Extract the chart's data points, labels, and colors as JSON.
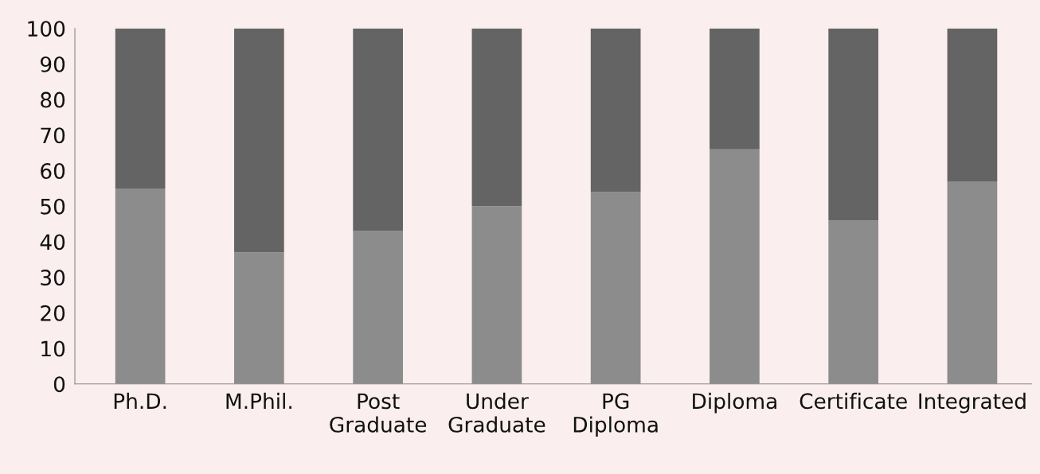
{
  "chart_data": {
    "type": "bar",
    "stacked": true,
    "categories": [
      "Ph.D.",
      "M.Phil.",
      "Post\nGraduate",
      "Under\nGraduate",
      "PG\nDiploma",
      "Diploma",
      "Certificate",
      "Integrated"
    ],
    "series": [
      {
        "color": "#8c8c8c",
        "values": [
          55,
          37,
          43,
          50,
          54,
          66,
          46,
          57
        ]
      },
      {
        "color": "#646464",
        "values": [
          45,
          63,
          57,
          50,
          46,
          34,
          54,
          43
        ]
      }
    ],
    "ylim": [
      0,
      100
    ],
    "yticks": [
      0,
      10,
      20,
      30,
      40,
      50,
      60,
      70,
      80,
      90,
      100
    ]
  }
}
